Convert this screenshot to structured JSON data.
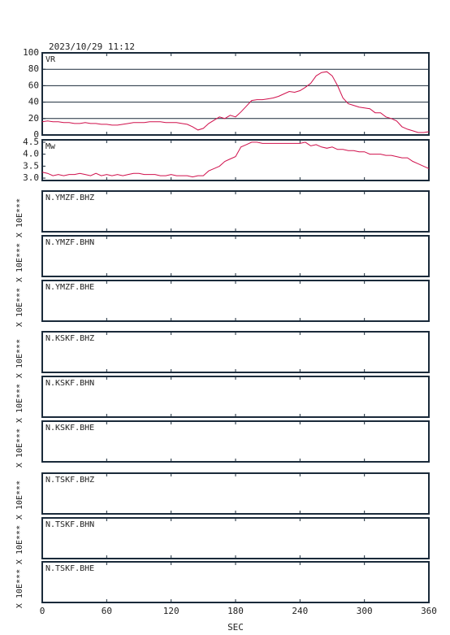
{
  "timestamp": "2023/10/29  11:12",
  "chart_data": [
    {
      "type": "line",
      "title": "VR",
      "color": "#d0104c",
      "grid": true,
      "x": [
        0,
        5,
        10,
        15,
        20,
        25,
        30,
        35,
        40,
        45,
        50,
        55,
        60,
        65,
        70,
        75,
        80,
        85,
        90,
        95,
        100,
        105,
        110,
        115,
        120,
        125,
        130,
        135,
        140,
        145,
        150,
        155,
        160,
        165,
        170,
        175,
        180,
        185,
        190,
        195,
        200,
        205,
        210,
        215,
        220,
        225,
        230,
        235,
        240,
        245,
        250,
        255,
        260,
        265,
        270,
        275,
        280,
        285,
        290,
        295,
        300,
        305,
        310,
        315,
        320,
        325,
        330,
        335,
        340,
        345,
        350,
        355,
        360
      ],
      "values": [
        16,
        17,
        16,
        16,
        15,
        15,
        14,
        14,
        15,
        14,
        14,
        13,
        13,
        12,
        12,
        13,
        14,
        15,
        15,
        15,
        16,
        16,
        16,
        15,
        15,
        15,
        14,
        13,
        10,
        6,
        8,
        14,
        18,
        22,
        20,
        24,
        22,
        28,
        35,
        42,
        43,
        43,
        44,
        45,
        47,
        50,
        53,
        52,
        54,
        58,
        63,
        72,
        76,
        77,
        72,
        60,
        45,
        38,
        36,
        34,
        33,
        32,
        27,
        27,
        22,
        20,
        17,
        10,
        7,
        5,
        3,
        3,
        4
      ],
      "xlim": [
        0,
        360
      ],
      "xticks": [
        0,
        60,
        120,
        180,
        240,
        300,
        360
      ],
      "ylim": [
        0,
        100
      ],
      "yticks": [
        0,
        20,
        40,
        60,
        80,
        100
      ]
    },
    {
      "type": "line",
      "title": "Mw",
      "color": "#d0104c",
      "grid": false,
      "x": [
        0,
        5,
        10,
        15,
        20,
        25,
        30,
        35,
        40,
        45,
        50,
        55,
        60,
        65,
        70,
        75,
        80,
        85,
        90,
        95,
        100,
        105,
        110,
        115,
        120,
        125,
        130,
        135,
        140,
        145,
        150,
        155,
        160,
        165,
        170,
        175,
        180,
        185,
        190,
        195,
        200,
        205,
        210,
        215,
        220,
        225,
        230,
        235,
        240,
        245,
        250,
        255,
        260,
        265,
        270,
        275,
        280,
        285,
        290,
        295,
        300,
        305,
        310,
        315,
        320,
        325,
        330,
        335,
        340,
        345,
        350,
        355,
        360
      ],
      "values": [
        3.25,
        3.2,
        3.1,
        3.15,
        3.1,
        3.15,
        3.15,
        3.2,
        3.15,
        3.1,
        3.2,
        3.1,
        3.15,
        3.1,
        3.15,
        3.1,
        3.15,
        3.2,
        3.2,
        3.15,
        3.15,
        3.15,
        3.1,
        3.1,
        3.15,
        3.1,
        3.1,
        3.1,
        3.05,
        3.1,
        3.1,
        3.3,
        3.4,
        3.5,
        3.7,
        3.8,
        3.9,
        4.3,
        4.4,
        4.5,
        4.5,
        4.45,
        4.45,
        4.45,
        4.45,
        4.45,
        4.45,
        4.45,
        4.45,
        4.5,
        4.35,
        4.4,
        4.3,
        4.25,
        4.3,
        4.2,
        4.2,
        4.15,
        4.15,
        4.1,
        4.1,
        4.0,
        4.0,
        4.0,
        3.95,
        3.95,
        3.9,
        3.85,
        3.85,
        3.7,
        3.6,
        3.5,
        3.4
      ],
      "xlim": [
        0,
        360
      ],
      "xticks": [
        0,
        60,
        120,
        180,
        240,
        300,
        360
      ],
      "ylim": [
        2.9,
        4.6
      ],
      "yticks": [
        {
          "value": 3,
          "label": "3.0"
        },
        3.5,
        {
          "value": 4,
          "label": "4.0"
        },
        4.5
      ]
    },
    {
      "type": "line",
      "title": "N.YMZF.BHZ",
      "ylabel": "X 10E***",
      "xlim": [
        0,
        360
      ],
      "xticks": [
        0,
        60,
        120,
        180,
        240,
        300,
        360
      ]
    },
    {
      "type": "line",
      "title": "N.YMZF.BHN",
      "ylabel": "X 10E***",
      "xlim": [
        0,
        360
      ],
      "xticks": [
        0,
        60,
        120,
        180,
        240,
        300,
        360
      ]
    },
    {
      "type": "line",
      "title": "N.YMZF.BHE",
      "ylabel": "X 10E***",
      "xlim": [
        0,
        360
      ],
      "xticks": [
        0,
        60,
        120,
        180,
        240,
        300,
        360
      ]
    },
    {
      "type": "line",
      "title": "N.KSKF.BHZ",
      "ylabel": "X 10E***",
      "xlim": [
        0,
        360
      ],
      "xticks": [
        0,
        60,
        120,
        180,
        240,
        300,
        360
      ]
    },
    {
      "type": "line",
      "title": "N.KSKF.BHN",
      "ylabel": "X 10E***",
      "xlim": [
        0,
        360
      ],
      "xticks": [
        0,
        60,
        120,
        180,
        240,
        300,
        360
      ]
    },
    {
      "type": "line",
      "title": "N.KSKF.BHE",
      "ylabel": "X 10E***",
      "xlim": [
        0,
        360
      ],
      "xticks": [
        0,
        60,
        120,
        180,
        240,
        300,
        360
      ]
    },
    {
      "type": "line",
      "title": "N.TSKF.BHZ",
      "ylabel": "X 10E***",
      "xlim": [
        0,
        360
      ],
      "xticks": [
        0,
        60,
        120,
        180,
        240,
        300,
        360
      ]
    },
    {
      "type": "line",
      "title": "N.TSKF.BHN",
      "ylabel": "X 10E***",
      "xlim": [
        0,
        360
      ],
      "xticks": [
        0,
        60,
        120,
        180,
        240,
        300,
        360
      ]
    },
    {
      "type": "line",
      "title": "N.TSKF.BHE",
      "ylabel": "X 10E***",
      "xlim": [
        0,
        360
      ],
      "xticks": [
        0,
        60,
        120,
        180,
        240,
        300,
        360
      ],
      "xlabel": "SEC"
    }
  ]
}
